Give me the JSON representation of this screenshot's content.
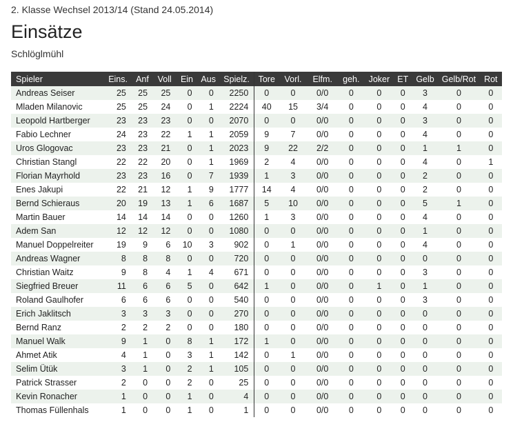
{
  "header": {
    "season_line": "2. Klasse Wechsel 2013/14 (Stand 24.05.2014)",
    "title": "Einsätze",
    "club": "Schlöglmühl"
  },
  "table": {
    "columns": [
      "Spieler",
      "Eins.",
      "Anf",
      "Voll",
      "Ein",
      "Aus",
      "Spielz.",
      "Tore",
      "Vorl.",
      "Elfm.",
      "geh.",
      "Joker",
      "ET",
      "Gelb",
      "Gelb/Rot",
      "Rot"
    ],
    "rows": [
      [
        "Andreas Seiser",
        "25",
        "25",
        "25",
        "0",
        "0",
        "2250",
        "0",
        "0",
        "0/0",
        "0",
        "0",
        "0",
        "3",
        "0",
        "0"
      ],
      [
        "Mladen Milanovic",
        "25",
        "25",
        "24",
        "0",
        "1",
        "2224",
        "40",
        "15",
        "3/4",
        "0",
        "0",
        "0",
        "4",
        "0",
        "0"
      ],
      [
        "Leopold Hartberger",
        "23",
        "23",
        "23",
        "0",
        "0",
        "2070",
        "0",
        "0",
        "0/0",
        "0",
        "0",
        "0",
        "3",
        "0",
        "0"
      ],
      [
        "Fabio Lechner",
        "24",
        "23",
        "22",
        "1",
        "1",
        "2059",
        "9",
        "7",
        "0/0",
        "0",
        "0",
        "0",
        "4",
        "0",
        "0"
      ],
      [
        "Uros Glogovac",
        "23",
        "23",
        "21",
        "0",
        "1",
        "2023",
        "9",
        "22",
        "2/2",
        "0",
        "0",
        "0",
        "1",
        "1",
        "0"
      ],
      [
        "Christian Stangl",
        "22",
        "22",
        "20",
        "0",
        "1",
        "1969",
        "2",
        "4",
        "0/0",
        "0",
        "0",
        "0",
        "4",
        "0",
        "1"
      ],
      [
        "Florian Mayrhold",
        "23",
        "23",
        "16",
        "0",
        "7",
        "1939",
        "1",
        "3",
        "0/0",
        "0",
        "0",
        "0",
        "2",
        "0",
        "0"
      ],
      [
        "Enes Jakupi",
        "22",
        "21",
        "12",
        "1",
        "9",
        "1777",
        "14",
        "4",
        "0/0",
        "0",
        "0",
        "0",
        "2",
        "0",
        "0"
      ],
      [
        "Bernd Schieraus",
        "20",
        "19",
        "13",
        "1",
        "6",
        "1687",
        "5",
        "10",
        "0/0",
        "0",
        "0",
        "0",
        "5",
        "1",
        "0"
      ],
      [
        "Martin Bauer",
        "14",
        "14",
        "14",
        "0",
        "0",
        "1260",
        "1",
        "3",
        "0/0",
        "0",
        "0",
        "0",
        "4",
        "0",
        "0"
      ],
      [
        "Adem San",
        "12",
        "12",
        "12",
        "0",
        "0",
        "1080",
        "0",
        "0",
        "0/0",
        "0",
        "0",
        "0",
        "1",
        "0",
        "0"
      ],
      [
        "Manuel Doppelreiter",
        "19",
        "9",
        "6",
        "10",
        "3",
        "902",
        "0",
        "1",
        "0/0",
        "0",
        "0",
        "0",
        "4",
        "0",
        "0"
      ],
      [
        "Andreas Wagner",
        "8",
        "8",
        "8",
        "0",
        "0",
        "720",
        "0",
        "0",
        "0/0",
        "0",
        "0",
        "0",
        "0",
        "0",
        "0"
      ],
      [
        "Christian Waitz",
        "9",
        "8",
        "4",
        "1",
        "4",
        "671",
        "0",
        "0",
        "0/0",
        "0",
        "0",
        "0",
        "3",
        "0",
        "0"
      ],
      [
        "Siegfried Breuer",
        "11",
        "6",
        "6",
        "5",
        "0",
        "642",
        "1",
        "0",
        "0/0",
        "0",
        "1",
        "0",
        "1",
        "0",
        "0"
      ],
      [
        "Roland Gaulhofer",
        "6",
        "6",
        "6",
        "0",
        "0",
        "540",
        "0",
        "0",
        "0/0",
        "0",
        "0",
        "0",
        "3",
        "0",
        "0"
      ],
      [
        "Erich Jaklitsch",
        "3",
        "3",
        "3",
        "0",
        "0",
        "270",
        "0",
        "0",
        "0/0",
        "0",
        "0",
        "0",
        "0",
        "0",
        "0"
      ],
      [
        "Bernd Ranz",
        "2",
        "2",
        "2",
        "0",
        "0",
        "180",
        "0",
        "0",
        "0/0",
        "0",
        "0",
        "0",
        "0",
        "0",
        "0"
      ],
      [
        "Manuel Walk",
        "9",
        "1",
        "0",
        "8",
        "1",
        "172",
        "1",
        "0",
        "0/0",
        "0",
        "0",
        "0",
        "0",
        "0",
        "0"
      ],
      [
        "Ahmet Atik",
        "4",
        "1",
        "0",
        "3",
        "1",
        "142",
        "0",
        "1",
        "0/0",
        "0",
        "0",
        "0",
        "0",
        "0",
        "0"
      ],
      [
        "Selim Ütük",
        "3",
        "1",
        "0",
        "2",
        "1",
        "105",
        "0",
        "0",
        "0/0",
        "0",
        "0",
        "0",
        "0",
        "0",
        "0"
      ],
      [
        "Patrick Strasser",
        "2",
        "0",
        "0",
        "2",
        "0",
        "25",
        "0",
        "0",
        "0/0",
        "0",
        "0",
        "0",
        "0",
        "0",
        "0"
      ],
      [
        "Kevin Ronacher",
        "1",
        "0",
        "0",
        "1",
        "0",
        "4",
        "0",
        "0",
        "0/0",
        "0",
        "0",
        "0",
        "0",
        "0",
        "0"
      ],
      [
        "Thomas Füllenhals",
        "1",
        "0",
        "0",
        "1",
        "0",
        "1",
        "0",
        "0",
        "0/0",
        "0",
        "0",
        "0",
        "0",
        "0",
        "0"
      ]
    ]
  }
}
